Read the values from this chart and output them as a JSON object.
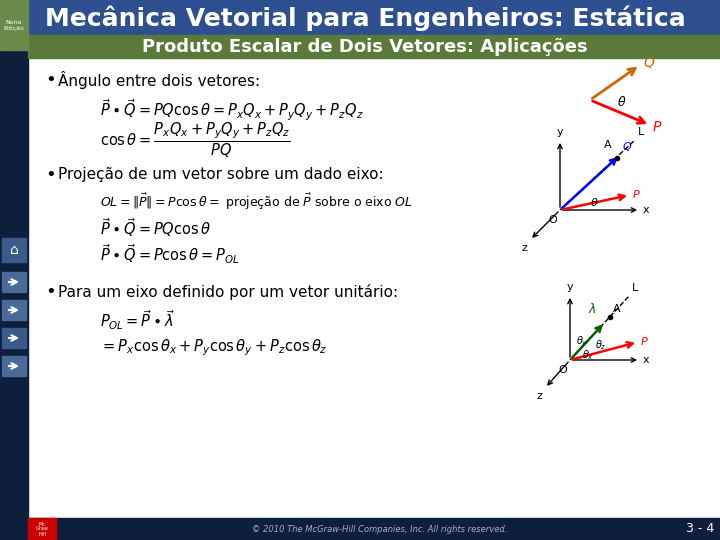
{
  "title": "Mecânica Vetorial para Engenheiros: Estática",
  "subtitle": "Produto Escalar de Dois Vetores: Aplicações",
  "sidebar_dark": "#0d1f3c",
  "sidebar_green": "#6a8a4a",
  "title_bg": "#2e5090",
  "subtitle_bg": "#5a7a3a",
  "content_bg": "#ffffff",
  "footer_text": "© 2010 The McGraw-Hill Companies, Inc. All rights reserved.",
  "page_number": "3 - 4",
  "bullet1": "Ângulo entre dois vetores:",
  "bullet2": "Projeção de um vetor sobre um dado eixo:",
  "bullet3": "Para um eixo definido por um vetor unitário:",
  "nona_text": "Nona\nEdição",
  "footer_bg": "#0d1f3c",
  "mcgraw_red": "#cc0000"
}
